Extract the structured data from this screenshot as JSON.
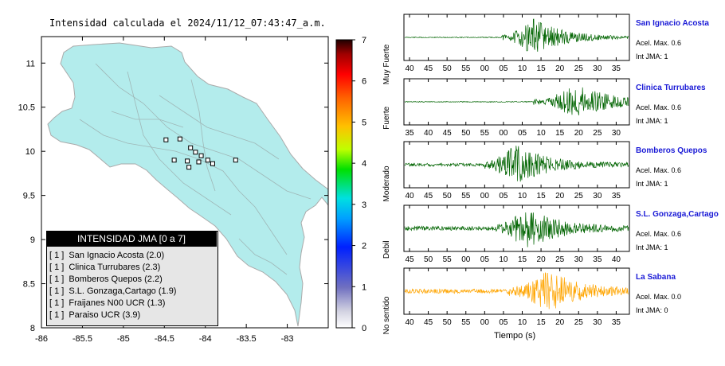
{
  "map": {
    "title": "Intensidad calculada el 2024/11/12_07:43:47_a.m.",
    "x_ticks": [
      "-86",
      "-85.5",
      "-85",
      "-84.5",
      "-84",
      "-83.5",
      "-83"
    ],
    "y_ticks": [
      "11",
      "10.5",
      "10",
      "9.5",
      "9",
      "8.5",
      "8"
    ],
    "xlim": [
      -86,
      -82.5
    ],
    "ylim": [
      8,
      11.3
    ],
    "land_color": "#b3ecec",
    "station_markers": [
      {
        "lon": -84.48,
        "lat": 10.13
      },
      {
        "lon": -84.31,
        "lat": 10.14
      },
      {
        "lon": -84.18,
        "lat": 10.04
      },
      {
        "lon": -84.12,
        "lat": 9.99
      },
      {
        "lon": -84.05,
        "lat": 9.95
      },
      {
        "lon": -83.97,
        "lat": 9.9
      },
      {
        "lon": -84.38,
        "lat": 9.9
      },
      {
        "lon": -84.22,
        "lat": 9.89
      },
      {
        "lon": -84.08,
        "lat": 9.88
      },
      {
        "lon": -83.91,
        "lat": 9.86
      },
      {
        "lon": -83.63,
        "lat": 9.9
      },
      {
        "lon": -84.2,
        "lat": 9.82
      }
    ]
  },
  "colorbar": {
    "ticks": [
      "0",
      "1",
      "2",
      "3",
      "4",
      "5",
      "6",
      "7"
    ],
    "class_labels": [
      "No sentido",
      "Debil",
      "Moderado",
      "Fuerte",
      "Muy Fuerte"
    ]
  },
  "legend": {
    "title": "INTENSIDAD JMA [0 a 7]",
    "items": [
      {
        "marker": "[ 1 ]",
        "label": "San Ignacio Acosta (2.0)"
      },
      {
        "marker": "[ 1 ]",
        "label": "Clinica Turrubares (2.3)"
      },
      {
        "marker": "[ 1 ]",
        "label": "Bomberos Quepos (2.2)"
      },
      {
        "marker": "[ 1 ]",
        "label": "S.L. Gonzaga,Cartago (1.9)"
      },
      {
        "marker": "[ 1 ]",
        "label": "Fraijanes N00 UCR (1.3)"
      },
      {
        "marker": "[ 1 ]",
        "label": "Paraiso UCR (3.9)"
      }
    ]
  },
  "chart_data": [
    {
      "type": "line",
      "title": "San Ignacio Acosta",
      "accel_label": "Acel. Max. 0.6",
      "jma_label": "Int JMA: 1",
      "color": "#006400",
      "x_ticks": [
        "40",
        "45",
        "50",
        "55",
        "00",
        "05",
        "10",
        "15",
        "20",
        "25",
        "30",
        "35"
      ],
      "onset_s": 4.5,
      "peak_s": 13.0,
      "amplitude": 0.85,
      "noise": 0.02
    },
    {
      "type": "line",
      "title": "Clinica Turrubares",
      "accel_label": "Acel. Max. 0.6",
      "jma_label": "Int JMA: 1",
      "color": "#006400",
      "x_ticks": [
        "35",
        "40",
        "45",
        "50",
        "55",
        "00",
        "05",
        "10",
        "15",
        "20",
        "25",
        "30"
      ],
      "onset_s": 8.0,
      "peak_s": 20.0,
      "amplitude": 0.85,
      "noise": 0.02
    },
    {
      "type": "line",
      "title": "Bomberos Quepos",
      "accel_label": "Acel. Max. 0.6",
      "jma_label": "Int JMA: 1",
      "color": "#006400",
      "x_ticks": [
        "40",
        "45",
        "50",
        "55",
        "00",
        "05",
        "10",
        "15",
        "20",
        "25",
        "30",
        "35"
      ],
      "onset_s": 0.0,
      "peak_s": 8.0,
      "amplitude": 0.9,
      "noise": 0.07
    },
    {
      "type": "line",
      "title": "S.L. Gonzaga,Cartago",
      "accel_label": "Acel. Max. 0.6",
      "jma_label": "Int JMA: 1",
      "color": "#006400",
      "x_ticks": [
        "45",
        "50",
        "55",
        "00",
        "05",
        "10",
        "15",
        "20",
        "25",
        "30",
        "35",
        "40"
      ],
      "onset_s": 8.0,
      "peak_s": 16.0,
      "amplitude": 0.9,
      "noise": 0.1
    },
    {
      "type": "line",
      "title": "La Sabana",
      "accel_label": "Acel. Max. 0.0",
      "jma_label": "Int JMA: 0",
      "color": "#ffa500",
      "x_ticks": [
        "40",
        "45",
        "50",
        "55",
        "00",
        "05",
        "10",
        "15",
        "20",
        "25",
        "30",
        "35"
      ],
      "onset_s": 6.0,
      "peak_s": 17.0,
      "amplitude": 0.9,
      "noise": 0.1
    }
  ],
  "waveform_xlabel": "Tiempo (s)"
}
